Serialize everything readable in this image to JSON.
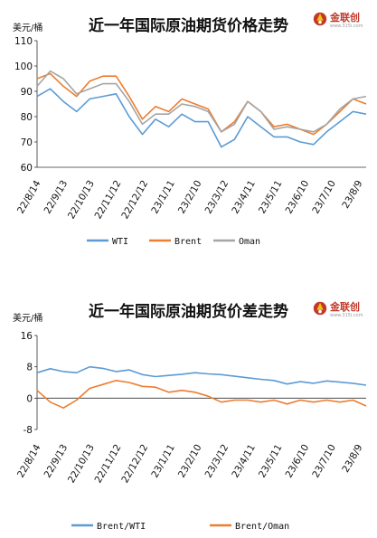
{
  "chart_data": [
    {
      "type": "line",
      "title": "近一年国际原油期货价格走势",
      "ylabel": "美元/桶",
      "ylim": [
        60,
        110
      ],
      "yticks": [
        "110",
        "100",
        "90",
        "80",
        "70",
        "60"
      ],
      "ytick_values": [
        110,
        100,
        90,
        80,
        70,
        60
      ],
      "xtick_labels": [
        "22/8/14",
        "22/9/13",
        "22/10/13",
        "22/11/12",
        "22/12/12",
        "23/1/11",
        "23/2/10",
        "23/3/12",
        "23/4/11",
        "23/5/11",
        "23/6/10",
        "23/7/10",
        "23/8/9"
      ],
      "grid": false,
      "legend_position": "bottom",
      "x": [
        "22/8/14",
        "22/8/29",
        "22/9/13",
        "22/9/28",
        "22/10/13",
        "22/10/28",
        "22/11/12",
        "22/11/27",
        "22/12/12",
        "22/12/27",
        "23/1/11",
        "23/1/26",
        "23/2/10",
        "23/2/25",
        "23/3/12",
        "23/3/27",
        "23/4/11",
        "23/4/26",
        "23/5/11",
        "23/5/26",
        "23/6/10",
        "23/6/25",
        "23/7/10",
        "23/7/25",
        "23/8/9",
        "23/8/16"
      ],
      "series": [
        {
          "name": "WTI",
          "color": "#5b9bd5",
          "values": [
            88,
            91,
            86,
            82,
            87,
            88,
            89,
            80,
            73,
            79,
            76,
            81,
            78,
            78,
            68,
            71,
            80,
            76,
            72,
            72,
            70,
            69,
            74,
            78,
            82,
            81
          ]
        },
        {
          "name": "Brent",
          "color": "#ed7d31",
          "values": [
            95,
            97,
            92,
            88,
            94,
            96,
            96,
            88,
            79,
            84,
            82,
            87,
            85,
            83,
            74,
            78,
            86,
            82,
            76,
            77,
            75,
            73,
            77,
            82,
            87,
            85
          ]
        },
        {
          "name": "Oman",
          "color": "#a5a5a5",
          "values": [
            92,
            98,
            95,
            89,
            91,
            93,
            93,
            86,
            77,
            81,
            81,
            85,
            84,
            82,
            74,
            77,
            86,
            82,
            75,
            76,
            75,
            74,
            77,
            83,
            87,
            88
          ]
        }
      ]
    },
    {
      "type": "line",
      "title": "近一年国际原油期货价差走势",
      "ylabel": "美元/桶",
      "ylim": [
        -8,
        16
      ],
      "yticks": [
        "16",
        "8",
        "0",
        "-8"
      ],
      "ytick_values": [
        16,
        8,
        0,
        -8
      ],
      "xtick_labels": [
        "22/8/14",
        "22/9/13",
        "22/10/13",
        "22/11/12",
        "22/12/12",
        "23/1/11",
        "23/2/10",
        "23/3/12",
        "23/4/11",
        "23/5/11",
        "23/6/10",
        "23/7/10",
        "23/8/9"
      ],
      "grid": false,
      "legend_position": "bottom",
      "x": [
        "22/8/14",
        "22/8/29",
        "22/9/13",
        "22/9/28",
        "22/10/13",
        "22/10/28",
        "22/11/12",
        "22/11/27",
        "22/12/12",
        "22/12/27",
        "23/1/11",
        "23/1/26",
        "23/2/10",
        "23/2/25",
        "23/3/12",
        "23/3/27",
        "23/4/11",
        "23/4/26",
        "23/5/11",
        "23/5/26",
        "23/6/10",
        "23/6/25",
        "23/7/10",
        "23/7/25",
        "23/8/9",
        "23/8/16"
      ],
      "series": [
        {
          "name": "Brent/WTI",
          "color": "#5b9bd5",
          "values": [
            6.5,
            7.5,
            6.8,
            6.5,
            8.0,
            7.6,
            6.8,
            7.2,
            6.0,
            5.5,
            5.8,
            6.1,
            6.5,
            6.2,
            6.0,
            5.6,
            5.2,
            4.8,
            4.5,
            3.6,
            4.2,
            3.8,
            4.4,
            4.1,
            3.8,
            3.3
          ]
        },
        {
          "name": "Brent/Oman",
          "color": "#ed7d31",
          "values": [
            2.0,
            -1.0,
            -2.5,
            -0.5,
            2.5,
            3.5,
            4.5,
            4.0,
            3.0,
            2.8,
            1.5,
            2.0,
            1.5,
            0.5,
            -1.0,
            -0.5,
            -0.5,
            -1.0,
            -0.5,
            -1.5,
            -0.5,
            -1.0,
            -0.5,
            -1.0,
            -0.5,
            -2.0
          ]
        }
      ]
    }
  ],
  "logo": {
    "brand": "金联创",
    "url": "www.315i.com"
  }
}
